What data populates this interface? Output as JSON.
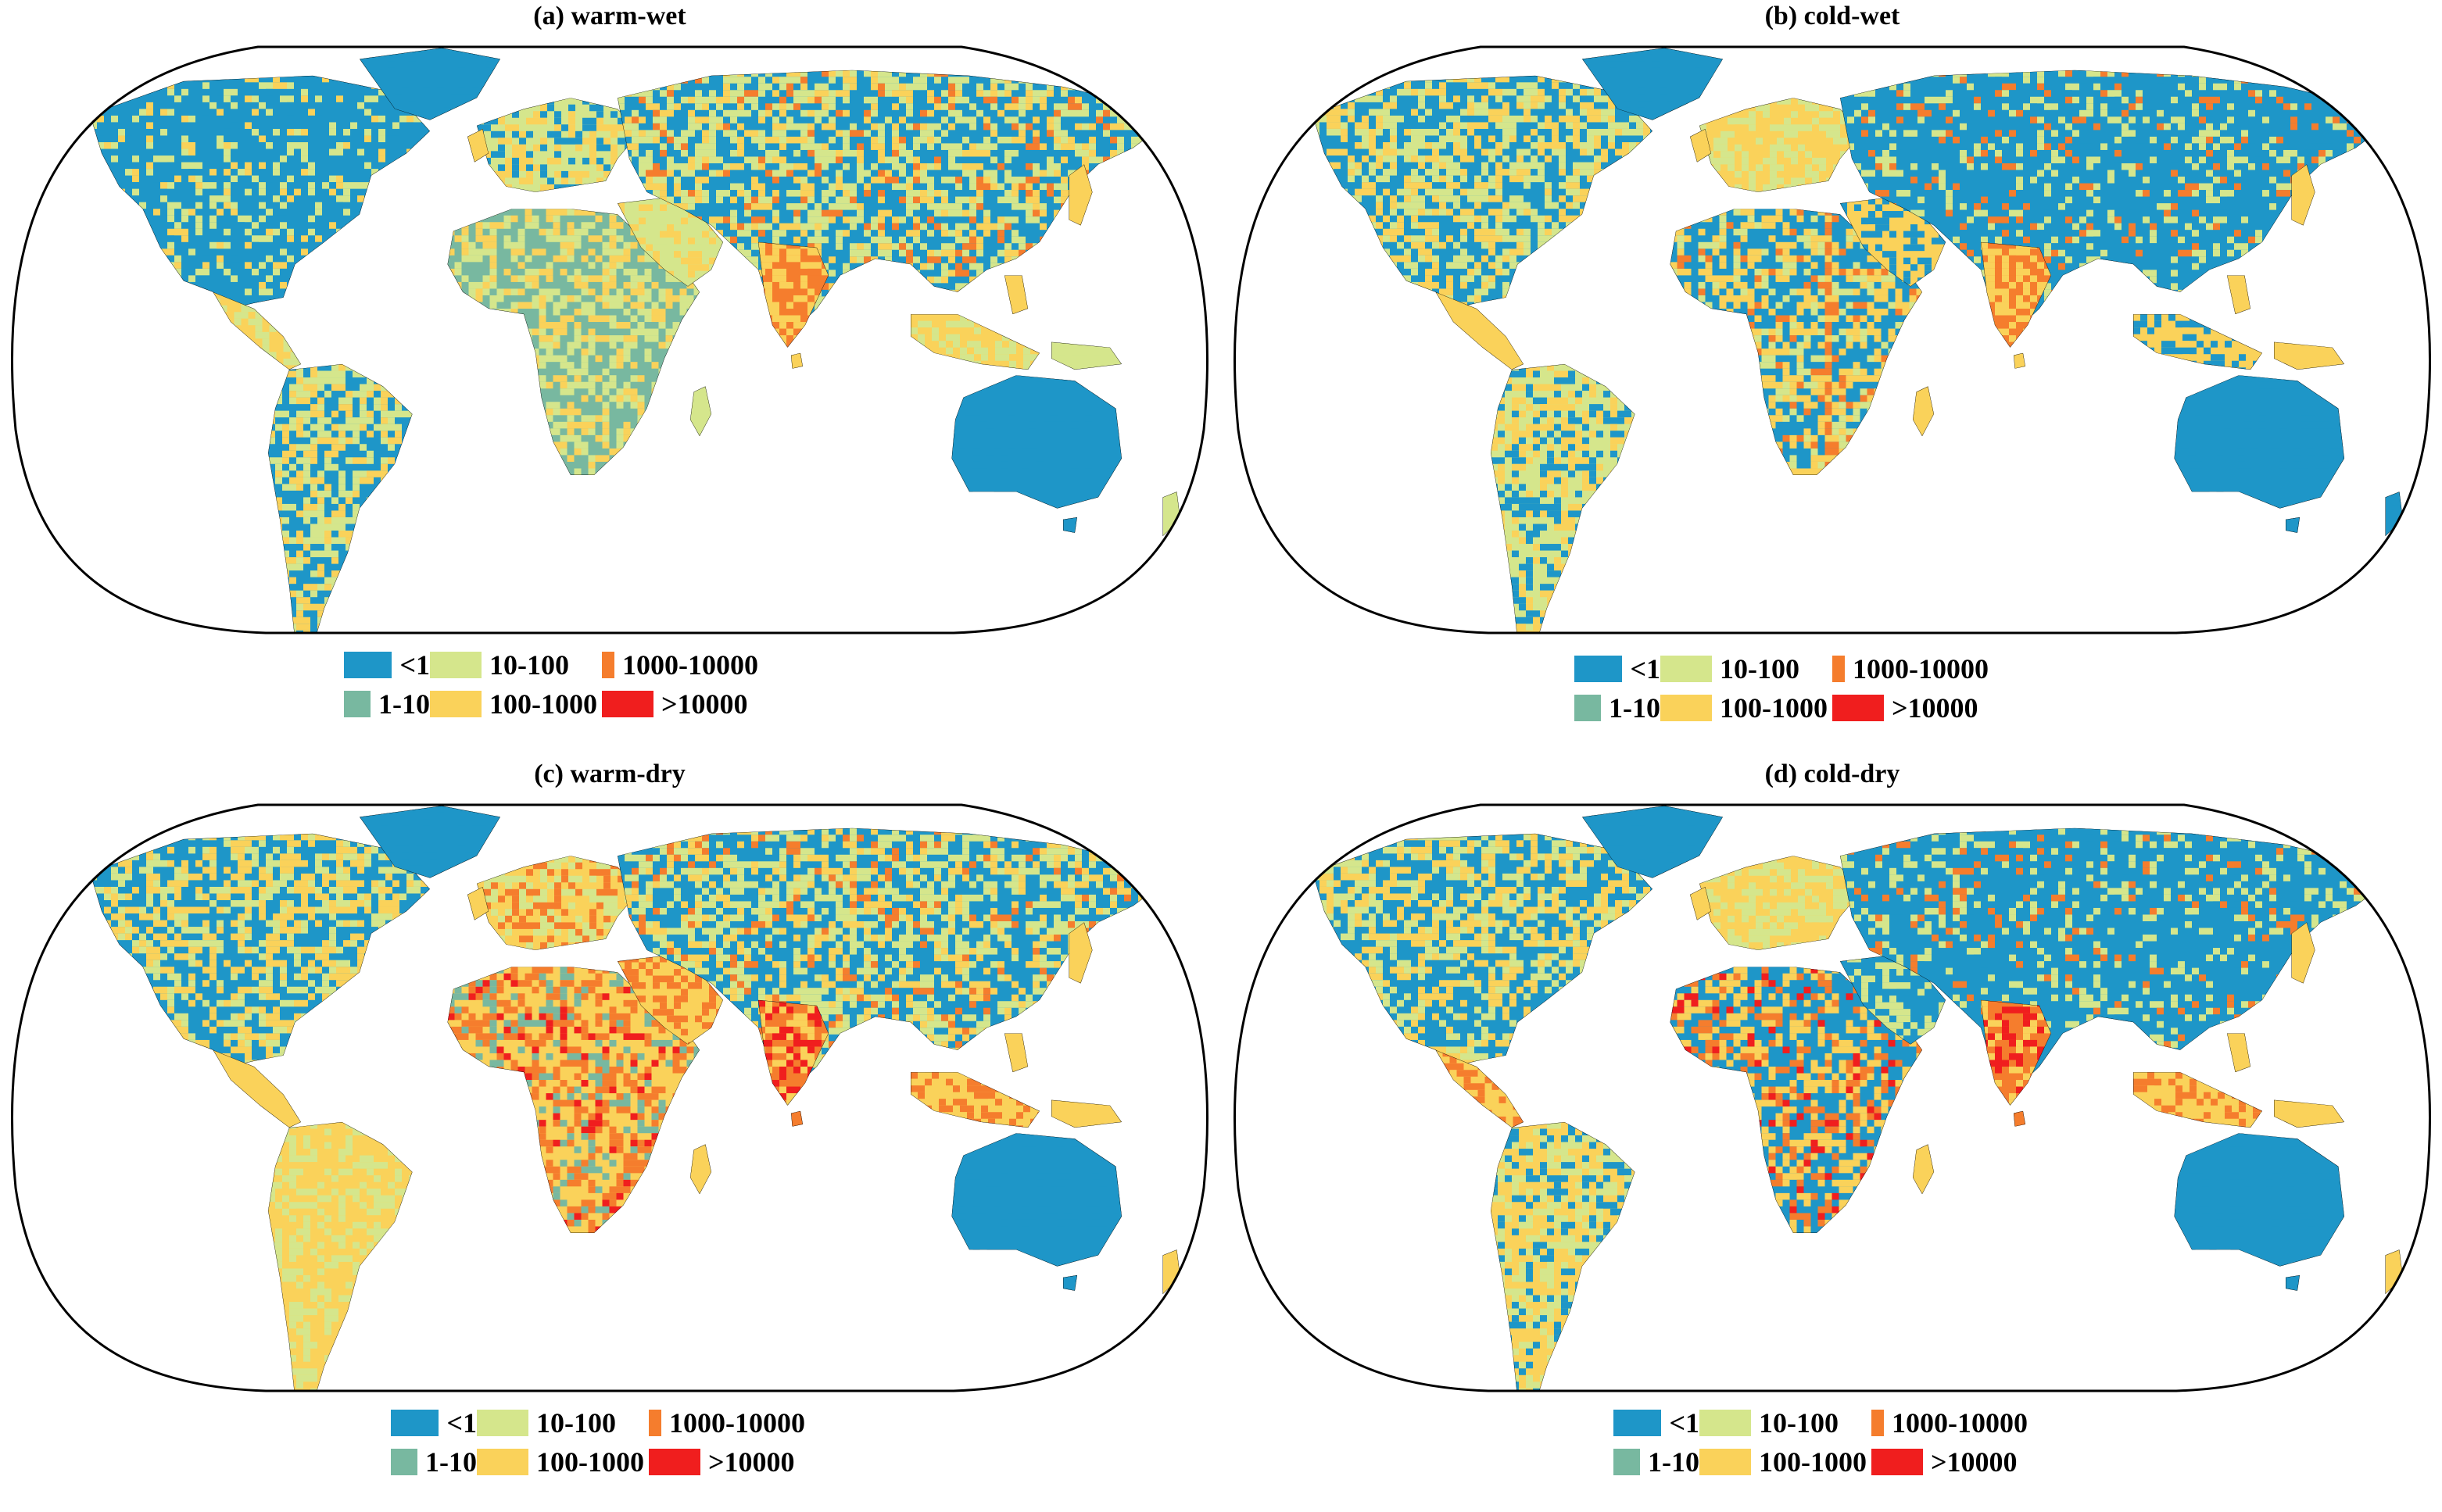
{
  "colors": {
    "lt1": "#1e96c8",
    "c1_10": "#78b8a0",
    "c10_100": "#d5e68c",
    "c100_1000": "#fad25a",
    "c1000_10000": "#f57d2d",
    "gt10000": "#f01e1e",
    "land_outline": "#000000",
    "ocean": "#ffffff"
  },
  "legend_labels": [
    "<1",
    "1-10",
    "10-100",
    "100-1000",
    "1000-10000",
    ">10000"
  ],
  "panels": [
    {
      "title": "(a) warm-wet"
    },
    {
      "title": "(b) cold-wet"
    },
    {
      "title": "(c) warm-dry"
    },
    {
      "title": "(d) cold-dry"
    }
  ]
}
